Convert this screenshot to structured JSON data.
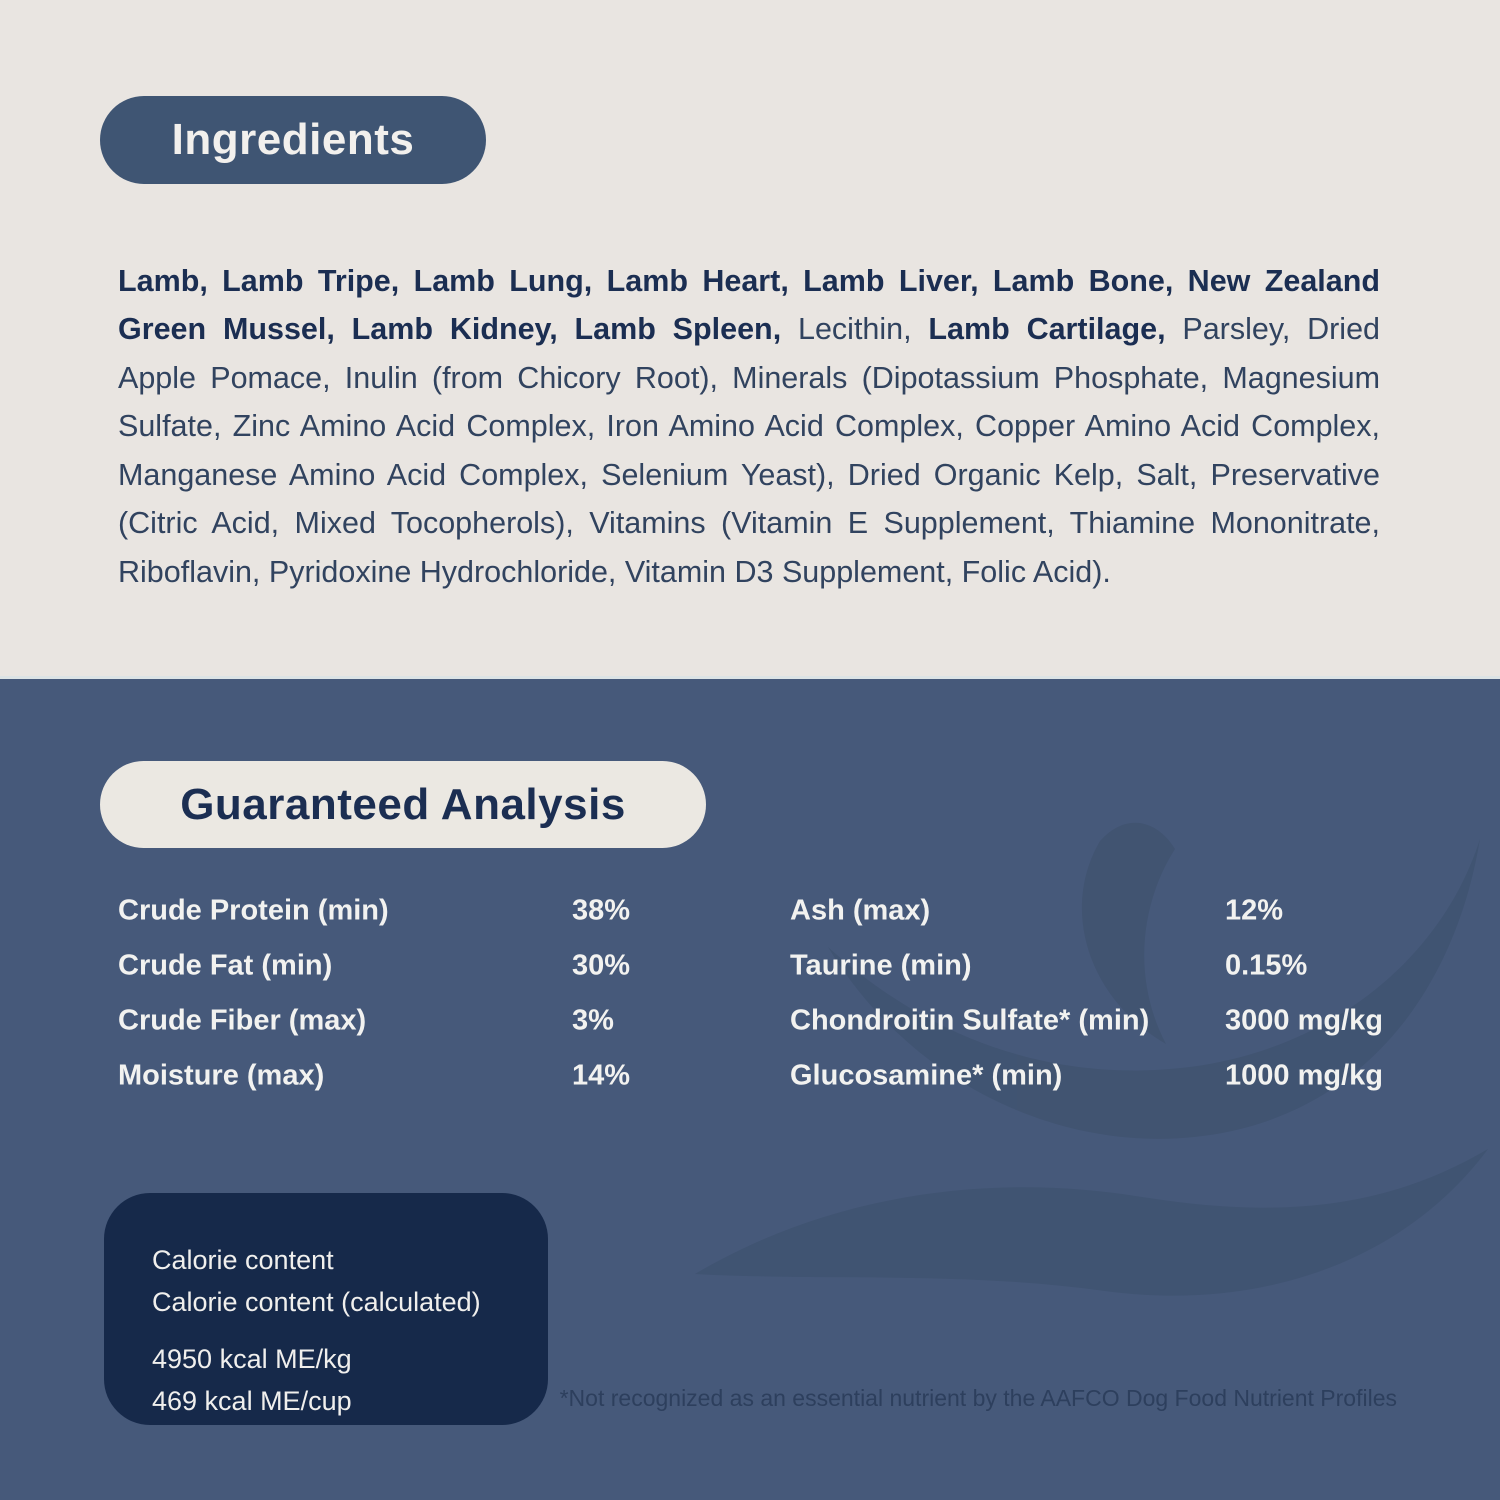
{
  "colors": {
    "top_background": "#e9e5e1",
    "bottom_background": "#46597a",
    "pill_navy": "#3f5573",
    "pill_light": "#ebe8e2",
    "dark_text": "#1b2e52",
    "body_text": "#31435f",
    "white_text": "#f2f2f0",
    "calorie_box": "#16294a",
    "watermark": "#3d506b",
    "footnote_text": "#2d3f5d"
  },
  "ingredients": {
    "title": "Ingredients",
    "segments": [
      {
        "bold": true,
        "text": "Lamb, Lamb Tripe, Lamb Lung, Lamb Heart, Lamb Liver, Lamb Bone, New Zealand Green Mussel, Lamb Kidney, Lamb Spleen,"
      },
      {
        "bold": false,
        "text": " Lecithin, "
      },
      {
        "bold": true,
        "text": "Lamb Cartilage,"
      },
      {
        "bold": false,
        "text": " Parsley, Dried Apple Pomace, Inulin (from Chicory Root), Minerals (Dipotassium Phosphate, Magnesium Sulfate, Zinc Amino Acid Complex, Iron Amino Acid Complex, Copper Amino Acid Complex, Manganese Amino Acid Complex, Selenium Yeast), Dried Organic Kelp, Salt, Preservative (Citric Acid, Mixed Tocopherols), Vitamins (Vitamin E Supplement, Thiamine Mononitrate, Riboflavin, Pyridoxine Hydrochloride, Vitamin D3 Supplement, Folic Acid)."
      }
    ]
  },
  "analysis": {
    "title": "Guaranteed Analysis",
    "left": [
      {
        "label": "Crude Protein (min)",
        "value": "38%"
      },
      {
        "label": "Crude Fat (min)",
        "value": "30%"
      },
      {
        "label": "Crude Fiber (max)",
        "value": "3%"
      },
      {
        "label": "Moisture (max)",
        "value": "14%"
      }
    ],
    "right": [
      {
        "label": "Ash (max)",
        "value": "12%"
      },
      {
        "label": "Taurine (min)",
        "value": "0.15%"
      },
      {
        "label": "Chondroitin Sulfate* (min)",
        "value": "3000 mg/kg"
      },
      {
        "label": "Glucosamine* (min)",
        "value": "1000 mg/kg"
      }
    ]
  },
  "calorie": {
    "lines": [
      "Calorie content",
      "Calorie content (calculated)",
      "4950 kcal ME/kg",
      "469 kcal ME/cup"
    ]
  },
  "footnote": "*Not recognized as an essential nutrient by the AAFCO Dog Food Nutrient Profiles"
}
